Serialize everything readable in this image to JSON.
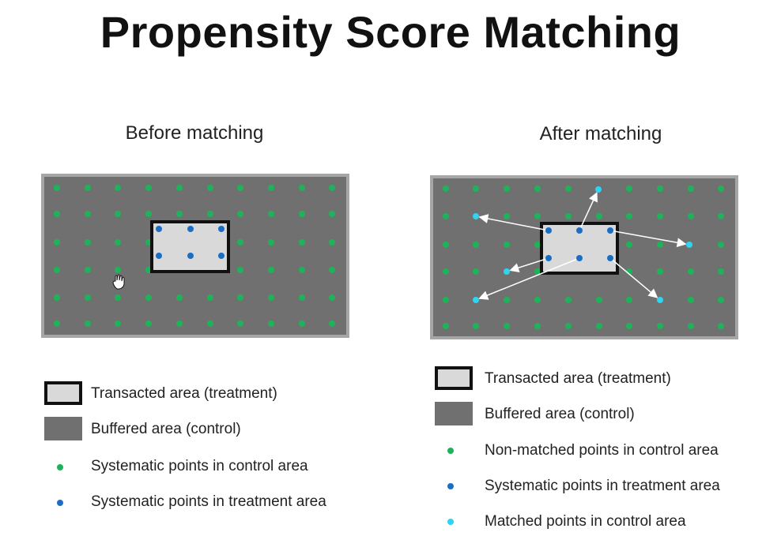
{
  "title": "Propensity Score Matching",
  "before": {
    "subtitle": "Before matching",
    "legend": [
      {
        "kind": "treatment",
        "label": "Transacted area (treatment)"
      },
      {
        "kind": "control",
        "label": "Buffered area (control)"
      },
      {
        "kind": "control-point",
        "label": "Systematic points in control area"
      },
      {
        "kind": "treatment-point",
        "label": "Systematic points in treatment area"
      }
    ]
  },
  "after": {
    "subtitle": "After matching",
    "legend": [
      {
        "kind": "treatment",
        "label": "Transacted area (treatment)"
      },
      {
        "kind": "control",
        "label": "Buffered area (control)"
      },
      {
        "kind": "control-point",
        "label": "Non-matched points in control area"
      },
      {
        "kind": "treatment-point",
        "label": "Systematic points in treatment area"
      },
      {
        "kind": "matched-point",
        "label": "Matched points in control area"
      }
    ]
  },
  "colors": {
    "control_area": "#707070",
    "panel_border": "#a6a6a6",
    "treatment_area": "#d9d9d9",
    "treatment_border": "#111111",
    "control_point": "#1db35a",
    "treatment_point": "#1a6fc4",
    "matched_point": "#2fd4f0",
    "arrow": "#ffffff"
  },
  "icons": {
    "cursor": "hand-cursor-icon"
  }
}
